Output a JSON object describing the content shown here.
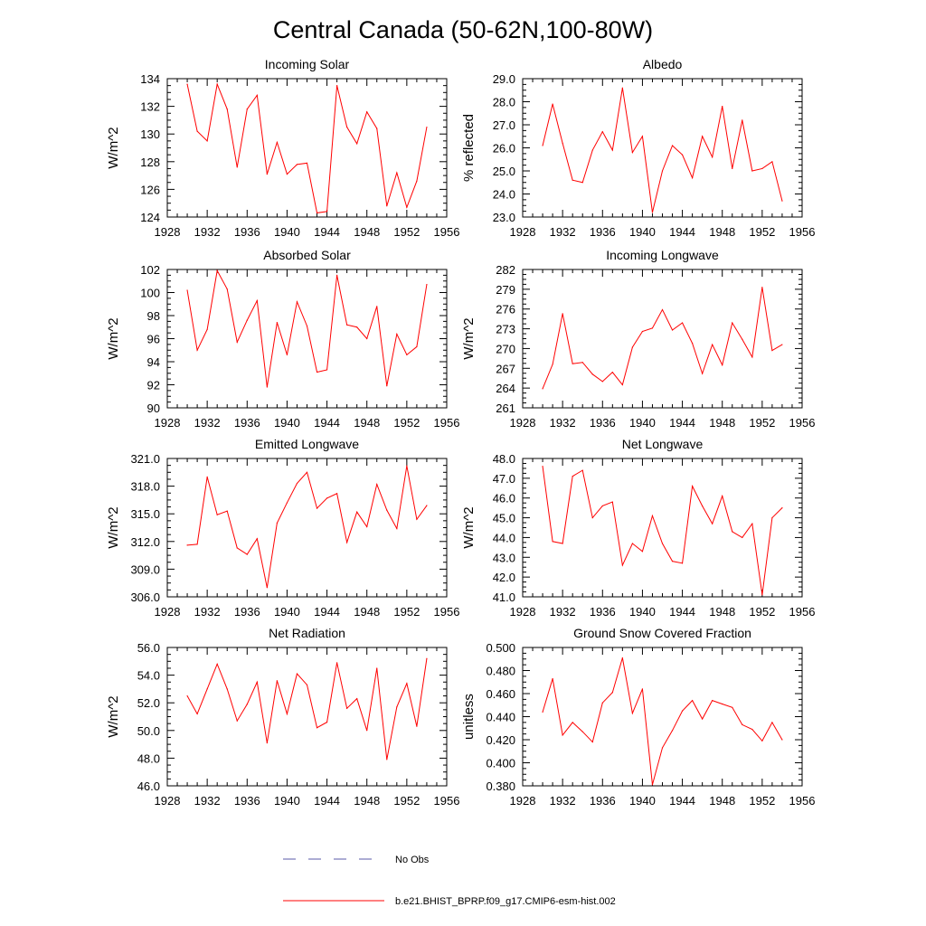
{
  "figure_title": "Central Canada (50-62N,100-80W)",
  "legend": {
    "entries": [
      {
        "label": "No Obs",
        "color": "#5a5aa8",
        "dashed": true
      },
      {
        "label": "b.e21.BHIST_BPRP.f09_g17.CMIP6-esm-hist.002",
        "color": "#ff0000",
        "dashed": false
      }
    ]
  },
  "chart_data": [
    {
      "type": "line",
      "title": "Incoming Solar",
      "xlabel": "",
      "ylabel": "W/m^2",
      "xlim": [
        1928,
        1956
      ],
      "ylim": [
        124,
        134
      ],
      "xticks": [
        1928,
        1932,
        1936,
        1940,
        1944,
        1948,
        1952,
        1956
      ],
      "xtick_labels": [
        "1928",
        "1932",
        "1936",
        "1940",
        "1944",
        "1948",
        "1952",
        "1956"
      ],
      "yticks": [
        124,
        126,
        128,
        130,
        132,
        134
      ],
      "ytick_labels": [
        "124",
        "126",
        "128",
        "130",
        "132",
        "134"
      ],
      "series": [
        {
          "name": "b.e21.BHIST_BPRP.f09_g17.CMIP6-esm-hist.002",
          "color": "#ff0000",
          "x": [
            1930,
            1931,
            1932,
            1933,
            1934,
            1935,
            1936,
            1937,
            1938,
            1939,
            1940,
            1941,
            1942,
            1943,
            1944,
            1945,
            1946,
            1947,
            1948,
            1949,
            1950,
            1951,
            1952,
            1953,
            1954
          ],
          "values": [
            133.6,
            130.2,
            129.5,
            133.6,
            131.8,
            127.6,
            131.8,
            132.8,
            127.1,
            129.4,
            127.1,
            127.8,
            127.9,
            124.3,
            124.4,
            133.5,
            130.5,
            129.3,
            131.6,
            130.4,
            124.8,
            127.2,
            124.7,
            126.6,
            130.5
          ]
        }
      ]
    },
    {
      "type": "line",
      "title": "Albedo",
      "xlabel": "",
      "ylabel": "% reflected",
      "xlim": [
        1928,
        1956
      ],
      "ylim": [
        23,
        29
      ],
      "xticks": [
        1928,
        1932,
        1936,
        1940,
        1944,
        1948,
        1952,
        1956
      ],
      "xtick_labels": [
        "1928",
        "1932",
        "1936",
        "1940",
        "1944",
        "1948",
        "1952",
        "1956"
      ],
      "yticks": [
        23,
        24,
        25,
        26,
        27,
        28,
        29
      ],
      "ytick_labels": [
        "23.0",
        "24.0",
        "25.0",
        "26.0",
        "27.0",
        "28.0",
        "29.0"
      ],
      "series": [
        {
          "name": "b.e21.BHIST_BPRP.f09_g17.CMIP6-esm-hist.002",
          "color": "#ff0000",
          "x": [
            1930,
            1931,
            1932,
            1933,
            1934,
            1935,
            1936,
            1937,
            1938,
            1939,
            1940,
            1941,
            1942,
            1943,
            1944,
            1945,
            1946,
            1947,
            1948,
            1949,
            1950,
            1951,
            1952,
            1953,
            1954
          ],
          "values": [
            26.1,
            27.9,
            26.2,
            24.6,
            24.5,
            25.9,
            26.7,
            25.9,
            28.6,
            25.8,
            26.5,
            23.2,
            25.0,
            26.1,
            25.7,
            24.7,
            26.5,
            25.6,
            27.8,
            25.1,
            27.2,
            25.0,
            25.1,
            25.4,
            23.7
          ]
        }
      ]
    },
    {
      "type": "line",
      "title": "Absorbed Solar",
      "xlabel": "",
      "ylabel": "W/m^2",
      "xlim": [
        1928,
        1956
      ],
      "ylim": [
        90,
        102
      ],
      "xticks": [
        1928,
        1932,
        1936,
        1940,
        1944,
        1948,
        1952,
        1956
      ],
      "xtick_labels": [
        "1928",
        "1932",
        "1936",
        "1940",
        "1944",
        "1948",
        "1952",
        "1956"
      ],
      "yticks": [
        90,
        92,
        94,
        96,
        98,
        100,
        102
      ],
      "ytick_labels": [
        "90",
        "92",
        "94",
        "96",
        "98",
        "100",
        "102"
      ],
      "series": [
        {
          "name": "b.e21.BHIST_BPRP.f09_g17.CMIP6-esm-hist.002",
          "color": "#ff0000",
          "x": [
            1930,
            1931,
            1932,
            1933,
            1934,
            1935,
            1936,
            1937,
            1938,
            1939,
            1940,
            1941,
            1942,
            1943,
            1944,
            1945,
            1946,
            1947,
            1948,
            1949,
            1950,
            1951,
            1952,
            1953,
            1954
          ],
          "values": [
            100.2,
            95.0,
            96.8,
            101.9,
            100.3,
            95.7,
            97.6,
            99.3,
            91.8,
            97.4,
            94.6,
            99.2,
            97.1,
            93.1,
            93.3,
            101.5,
            97.2,
            97.0,
            96.0,
            98.8,
            91.9,
            96.4,
            94.6,
            95.3,
            100.7
          ]
        }
      ]
    },
    {
      "type": "line",
      "title": "Incoming Longwave",
      "xlabel": "",
      "ylabel": "W/m^2",
      "xlim": [
        1928,
        1956
      ],
      "ylim": [
        261,
        282
      ],
      "xticks": [
        1928,
        1932,
        1936,
        1940,
        1944,
        1948,
        1952,
        1956
      ],
      "xtick_labels": [
        "1928",
        "1932",
        "1936",
        "1940",
        "1944",
        "1948",
        "1952",
        "1956"
      ],
      "yticks": [
        261,
        264,
        267,
        270,
        273,
        276,
        279,
        282
      ],
      "ytick_labels": [
        "261",
        "264",
        "267",
        "270",
        "273",
        "276",
        "279",
        "282"
      ],
      "series": [
        {
          "name": "b.e21.BHIST_BPRP.f09_g17.CMIP6-esm-hist.002",
          "color": "#ff0000",
          "x": [
            1930,
            1931,
            1932,
            1933,
            1934,
            1935,
            1936,
            1937,
            1938,
            1939,
            1940,
            1941,
            1942,
            1943,
            1944,
            1945,
            1946,
            1947,
            1948,
            1949,
            1950,
            1951,
            1952,
            1953,
            1954
          ],
          "values": [
            263.9,
            267.6,
            275.3,
            267.7,
            267.9,
            266.1,
            265.0,
            266.4,
            264.5,
            270.2,
            272.6,
            273.1,
            275.9,
            272.8,
            273.9,
            270.8,
            266.2,
            270.6,
            267.5,
            273.9,
            271.4,
            268.7,
            279.3,
            269.7,
            270.6
          ]
        }
      ]
    },
    {
      "type": "line",
      "title": "Emitted Longwave",
      "xlabel": "",
      "ylabel": "W/m^2",
      "xlim": [
        1928,
        1956
      ],
      "ylim": [
        306,
        321
      ],
      "xticks": [
        1928,
        1932,
        1936,
        1940,
        1944,
        1948,
        1952,
        1956
      ],
      "xtick_labels": [
        "1928",
        "1932",
        "1936",
        "1940",
        "1944",
        "1948",
        "1952",
        "1956"
      ],
      "yticks": [
        306,
        309,
        312,
        315,
        318,
        321
      ],
      "ytick_labels": [
        "306.0",
        "309.0",
        "312.0",
        "315.0",
        "318.0",
        "321.0"
      ],
      "series": [
        {
          "name": "b.e21.BHIST_BPRP.f09_g17.CMIP6-esm-hist.002",
          "color": "#ff0000",
          "x": [
            1930,
            1931,
            1932,
            1933,
            1934,
            1935,
            1936,
            1937,
            1938,
            1939,
            1940,
            1941,
            1942,
            1943,
            1944,
            1945,
            1946,
            1947,
            1948,
            1949,
            1950,
            1951,
            1952,
            1953,
            1954
          ],
          "values": [
            311.6,
            311.7,
            319.0,
            314.9,
            315.3,
            311.3,
            310.6,
            312.3,
            307.0,
            314.0,
            316.2,
            318.3,
            319.5,
            315.6,
            316.7,
            317.2,
            311.9,
            315.2,
            313.6,
            318.2,
            315.4,
            313.4,
            320.2,
            314.4,
            315.9
          ]
        }
      ]
    },
    {
      "type": "line",
      "title": "Net Longwave",
      "xlabel": "",
      "ylabel": "W/m^2",
      "xlim": [
        1928,
        1956
      ],
      "ylim": [
        41,
        48
      ],
      "xticks": [
        1928,
        1932,
        1936,
        1940,
        1944,
        1948,
        1952,
        1956
      ],
      "xtick_labels": [
        "1928",
        "1932",
        "1936",
        "1940",
        "1944",
        "1948",
        "1952",
        "1956"
      ],
      "yticks": [
        41,
        42,
        43,
        44,
        45,
        46,
        47,
        48
      ],
      "ytick_labels": [
        "41.0",
        "42.0",
        "43.0",
        "44.0",
        "45.0",
        "46.0",
        "47.0",
        "48.0"
      ],
      "series": [
        {
          "name": "b.e21.BHIST_BPRP.f09_g17.CMIP6-esm-hist.002",
          "color": "#ff0000",
          "x": [
            1930,
            1931,
            1932,
            1933,
            1934,
            1935,
            1936,
            1937,
            1938,
            1939,
            1940,
            1941,
            1942,
            1943,
            1944,
            1945,
            1946,
            1947,
            1948,
            1949,
            1950,
            1951,
            1952,
            1953,
            1954
          ],
          "values": [
            47.6,
            43.8,
            43.7,
            47.1,
            47.4,
            45.0,
            45.6,
            45.8,
            42.6,
            43.7,
            43.3,
            45.1,
            43.7,
            42.8,
            42.7,
            46.6,
            45.6,
            44.7,
            46.1,
            44.3,
            44.0,
            44.7,
            41.1,
            45.0,
            45.5
          ]
        }
      ]
    },
    {
      "type": "line",
      "title": "Net Radiation",
      "xlabel": "",
      "ylabel": "W/m^2",
      "xlim": [
        1928,
        1956
      ],
      "ylim": [
        46,
        56
      ],
      "xticks": [
        1928,
        1932,
        1936,
        1940,
        1944,
        1948,
        1952,
        1956
      ],
      "xtick_labels": [
        "1928",
        "1932",
        "1936",
        "1940",
        "1944",
        "1948",
        "1952",
        "1956"
      ],
      "yticks": [
        46,
        48,
        50,
        52,
        54,
        56
      ],
      "ytick_labels": [
        "46.0",
        "48.0",
        "50.0",
        "52.0",
        "54.0",
        "56.0"
      ],
      "series": [
        {
          "name": "b.e21.BHIST_BPRP.f09_g17.CMIP6-esm-hist.002",
          "color": "#ff0000",
          "x": [
            1930,
            1931,
            1932,
            1933,
            1934,
            1935,
            1936,
            1937,
            1938,
            1939,
            1940,
            1941,
            1942,
            1943,
            1944,
            1945,
            1946,
            1947,
            1948,
            1949,
            1950,
            1951,
            1952,
            1953,
            1954
          ],
          "values": [
            52.5,
            51.2,
            53.0,
            54.8,
            53.0,
            50.7,
            51.9,
            53.5,
            49.1,
            53.6,
            51.2,
            54.1,
            53.3,
            50.2,
            50.6,
            54.9,
            51.6,
            52.3,
            50.0,
            54.5,
            47.9,
            51.7,
            53.4,
            50.3,
            55.2
          ]
        }
      ]
    },
    {
      "type": "line",
      "title": "Ground Snow Covered Fraction",
      "xlabel": "",
      "ylabel": "unitless",
      "xlim": [
        1928,
        1956
      ],
      "ylim": [
        0.38,
        0.5
      ],
      "xticks": [
        1928,
        1932,
        1936,
        1940,
        1944,
        1948,
        1952,
        1956
      ],
      "xtick_labels": [
        "1928",
        "1932",
        "1936",
        "1940",
        "1944",
        "1948",
        "1952",
        "1956"
      ],
      "yticks": [
        0.38,
        0.4,
        0.42,
        0.44,
        0.46,
        0.48,
        0.5
      ],
      "ytick_labels": [
        "0.380",
        "0.400",
        "0.420",
        "0.440",
        "0.460",
        "0.480",
        "0.500"
      ],
      "series": [
        {
          "name": "b.e21.BHIST_BPRP.f09_g17.CMIP6-esm-hist.002",
          "color": "#ff0000",
          "x": [
            1930,
            1931,
            1932,
            1933,
            1934,
            1935,
            1936,
            1937,
            1938,
            1939,
            1940,
            1941,
            1942,
            1943,
            1944,
            1945,
            1946,
            1947,
            1948,
            1949,
            1950,
            1951,
            1952,
            1953,
            1954
          ],
          "values": [
            0.444,
            0.473,
            0.424,
            0.435,
            0.427,
            0.418,
            0.452,
            0.461,
            0.491,
            0.443,
            0.464,
            0.381,
            0.413,
            0.428,
            0.445,
            0.454,
            0.438,
            0.454,
            0.451,
            0.448,
            0.433,
            0.429,
            0.419,
            0.435,
            0.42
          ]
        }
      ]
    }
  ]
}
